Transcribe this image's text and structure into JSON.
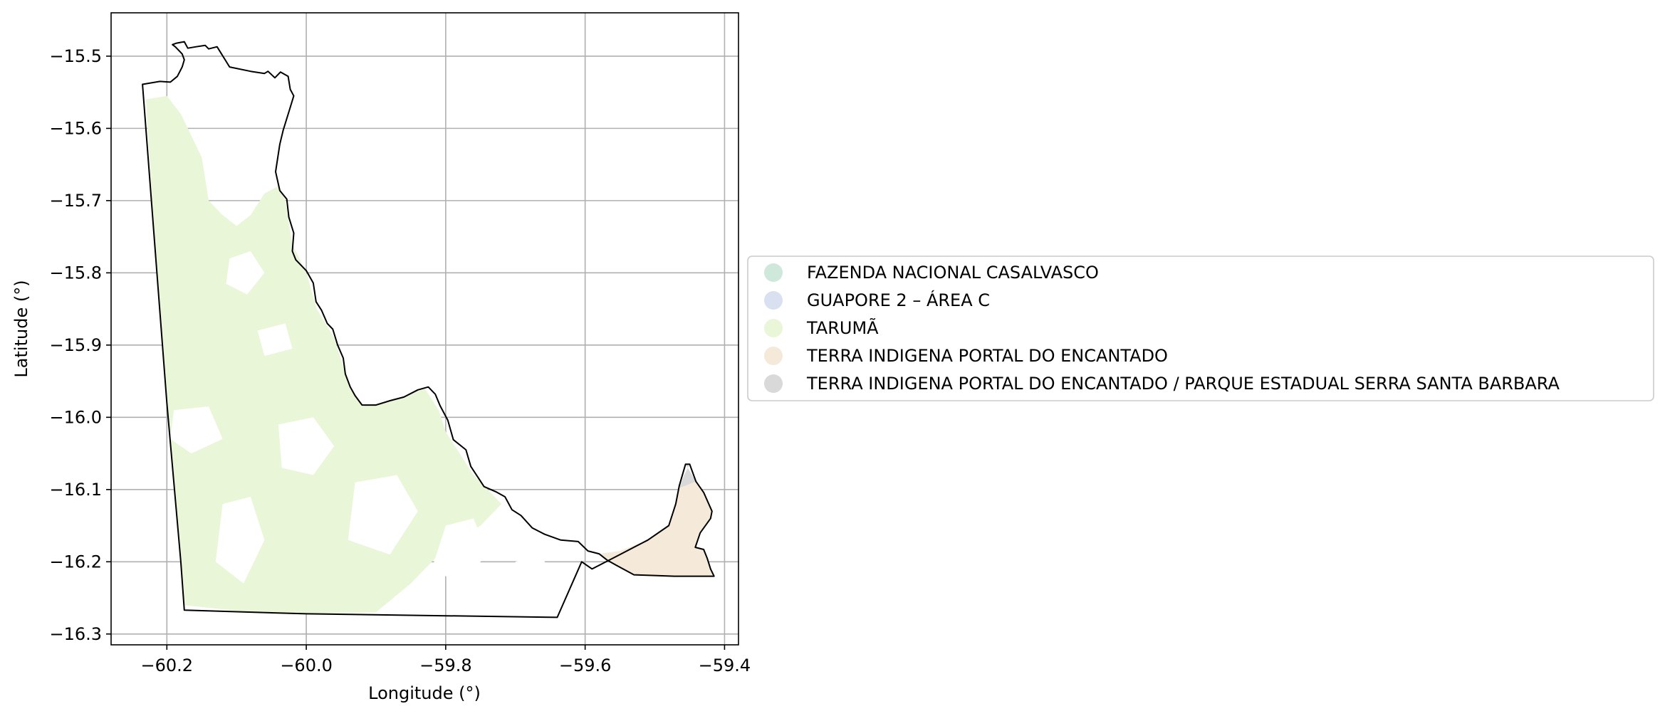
{
  "map": {
    "xlabel": "Longitude (°)",
    "ylabel": "Latitude (°)",
    "xlim": [
      -60.28,
      -59.38
    ],
    "ylim": [
      -16.315,
      -15.44
    ],
    "grid": true,
    "x_ticks": [
      {
        "value": -60.2,
        "label": "−60.2"
      },
      {
        "value": -60.0,
        "label": "−60.0"
      },
      {
        "value": -59.8,
        "label": "−59.8"
      },
      {
        "value": -59.6,
        "label": "−59.6"
      },
      {
        "value": -59.4,
        "label": "−59.4"
      }
    ],
    "y_ticks": [
      {
        "value": -15.5,
        "label": "−15.5"
      },
      {
        "value": -15.6,
        "label": "−15.6"
      },
      {
        "value": -15.7,
        "label": "−15.7"
      },
      {
        "value": -15.8,
        "label": "−15.8"
      },
      {
        "value": -15.9,
        "label": "−15.9"
      },
      {
        "value": -16.0,
        "label": "−16.0"
      },
      {
        "value": -16.1,
        "label": "−16.1"
      },
      {
        "value": -16.2,
        "label": "−16.2"
      },
      {
        "value": -16.3,
        "label": "−16.3"
      }
    ],
    "legend_placement": "center-right outside",
    "legend": [
      {
        "label": "FAZENDA NACIONAL CASALVASCO",
        "color": "#cfe8dc"
      },
      {
        "label": "GUAPORE 2 – ÁREA C",
        "color": "#d9e0ef"
      },
      {
        "label": "TARUMÃ",
        "color": "#e9f6d8"
      },
      {
        "label": "TERRA INDIGENA PORTAL DO ENCANTADO",
        "color": "#f5e9da"
      },
      {
        "label": "TERRA INDIGENA PORTAL DO ENCANTADO / PARQUE ESTADUAL SERRA SANTA BARBARA",
        "color": "#d9d9d9"
      }
    ],
    "boundary_color": "#000000",
    "regions": {
      "boundary": [
        [
          -60.235,
          -15.539
        ],
        [
          -60.21,
          -15.535
        ],
        [
          -60.195,
          -15.536
        ],
        [
          -60.185,
          -15.528
        ],
        [
          -60.178,
          -15.515
        ],
        [
          -60.175,
          -15.505
        ],
        [
          -60.178,
          -15.497
        ],
        [
          -60.188,
          -15.487
        ],
        [
          -60.192,
          -15.484
        ],
        [
          -60.186,
          -15.482
        ],
        [
          -60.175,
          -15.48
        ],
        [
          -60.17,
          -15.489
        ],
        [
          -60.158,
          -15.487
        ],
        [
          -60.145,
          -15.485
        ],
        [
          -60.14,
          -15.49
        ],
        [
          -60.128,
          -15.487
        ],
        [
          -60.11,
          -15.515
        ],
        [
          -60.08,
          -15.521
        ],
        [
          -60.06,
          -15.524
        ],
        [
          -60.055,
          -15.521
        ],
        [
          -60.045,
          -15.53
        ],
        [
          -60.037,
          -15.522
        ],
        [
          -60.026,
          -15.528
        ],
        [
          -60.023,
          -15.546
        ],
        [
          -60.018,
          -15.555
        ],
        [
          -60.024,
          -15.574
        ],
        [
          -60.033,
          -15.602
        ],
        [
          -60.038,
          -15.622
        ],
        [
          -60.044,
          -15.66
        ],
        [
          -60.038,
          -15.686
        ],
        [
          -60.028,
          -15.698
        ],
        [
          -60.025,
          -15.723
        ],
        [
          -60.018,
          -15.745
        ],
        [
          -60.02,
          -15.77
        ],
        [
          -60.015,
          -15.782
        ],
        [
          -60.0,
          -15.797
        ],
        [
          -59.99,
          -15.814
        ],
        [
          -59.986,
          -15.84
        ],
        [
          -59.978,
          -15.852
        ],
        [
          -59.97,
          -15.87
        ],
        [
          -59.962,
          -15.878
        ],
        [
          -59.955,
          -15.9
        ],
        [
          -59.947,
          -15.918
        ],
        [
          -59.944,
          -15.94
        ],
        [
          -59.937,
          -15.958
        ],
        [
          -59.93,
          -15.97
        ],
        [
          -59.92,
          -15.983
        ],
        [
          -59.9,
          -15.983
        ],
        [
          -59.88,
          -15.977
        ],
        [
          -59.86,
          -15.972
        ],
        [
          -59.84,
          -15.962
        ],
        [
          -59.825,
          -15.958
        ],
        [
          -59.815,
          -15.968
        ],
        [
          -59.808,
          -15.984
        ],
        [
          -59.797,
          -16.004
        ],
        [
          -59.789,
          -16.031
        ],
        [
          -59.771,
          -16.045
        ],
        [
          -59.764,
          -16.068
        ],
        [
          -59.745,
          -16.096
        ],
        [
          -59.728,
          -16.103
        ],
        [
          -59.715,
          -16.11
        ],
        [
          -59.705,
          -16.128
        ],
        [
          -59.692,
          -16.136
        ],
        [
          -59.676,
          -16.153
        ],
        [
          -59.658,
          -16.162
        ],
        [
          -59.635,
          -16.17
        ],
        [
          -59.61,
          -16.172
        ],
        [
          -59.596,
          -16.185
        ],
        [
          -59.58,
          -16.189
        ],
        [
          -59.568,
          -16.198
        ],
        [
          -59.555,
          -16.205
        ],
        [
          -59.53,
          -16.218
        ],
        [
          -59.5,
          -16.219
        ],
        [
          -59.472,
          -16.22
        ],
        [
          -59.44,
          -16.22
        ],
        [
          -59.415,
          -16.22
        ],
        [
          -59.42,
          -16.21
        ],
        [
          -59.425,
          -16.195
        ],
        [
          -59.43,
          -16.183
        ],
        [
          -59.442,
          -16.18
        ],
        [
          -59.435,
          -16.16
        ],
        [
          -59.42,
          -16.14
        ],
        [
          -59.418,
          -16.13
        ],
        [
          -59.43,
          -16.104
        ],
        [
          -59.441,
          -16.089
        ],
        [
          -59.45,
          -16.065
        ],
        [
          -59.456,
          -16.065
        ],
        [
          -59.465,
          -16.095
        ],
        [
          -59.47,
          -16.12
        ],
        [
          -59.48,
          -16.15
        ],
        [
          -59.51,
          -16.17
        ],
        [
          -59.55,
          -16.19
        ],
        [
          -59.59,
          -16.21
        ],
        [
          -59.605,
          -16.2
        ],
        [
          -59.64,
          -16.277
        ],
        [
          -60.0,
          -16.272
        ],
        [
          -60.175,
          -16.267
        ],
        [
          -60.18,
          -16.2
        ],
        [
          -60.2,
          -15.98
        ],
        [
          -60.235,
          -15.539
        ]
      ],
      "taruma_patches": [
        [
          [
            -60.23,
            -15.56
          ],
          [
            -60.2,
            -15.555
          ],
          [
            -60.18,
            -15.58
          ],
          [
            -60.15,
            -15.64
          ],
          [
            -60.14,
            -15.7
          ],
          [
            -60.12,
            -15.72
          ],
          [
            -60.1,
            -15.735
          ],
          [
            -60.08,
            -15.72
          ],
          [
            -60.06,
            -15.69
          ],
          [
            -60.04,
            -15.68
          ],
          [
            -60.03,
            -15.7
          ],
          [
            -60.02,
            -15.76
          ],
          [
            -60.0,
            -15.8
          ],
          [
            -59.985,
            -15.85
          ],
          [
            -59.96,
            -15.89
          ],
          [
            -59.94,
            -15.95
          ],
          [
            -59.92,
            -15.985
          ],
          [
            -59.87,
            -15.975
          ],
          [
            -59.83,
            -15.96
          ],
          [
            -59.81,
            -15.99
          ],
          [
            -59.8,
            -16.02
          ],
          [
            -59.78,
            -16.05
          ],
          [
            -59.76,
            -16.08
          ],
          [
            -59.74,
            -16.1
          ],
          [
            -59.72,
            -16.12
          ],
          [
            -59.75,
            -16.15
          ],
          [
            -59.8,
            -16.18
          ],
          [
            -59.85,
            -16.23
          ],
          [
            -59.9,
            -16.27
          ],
          [
            -60.0,
            -16.272
          ],
          [
            -60.1,
            -16.268
          ],
          [
            -60.175,
            -16.26
          ],
          [
            -60.19,
            -16.1
          ],
          [
            -60.2,
            -15.98
          ],
          [
            -60.215,
            -15.8
          ],
          [
            -60.23,
            -15.56
          ]
        ]
      ],
      "taruma_gaps": [
        [
          [
            -60.11,
            -15.78
          ],
          [
            -60.08,
            -15.77
          ],
          [
            -60.06,
            -15.8
          ],
          [
            -60.085,
            -15.83
          ],
          [
            -60.115,
            -15.815
          ]
        ],
        [
          [
            -60.07,
            -15.88
          ],
          [
            -60.03,
            -15.87
          ],
          [
            -60.02,
            -15.905
          ],
          [
            -60.06,
            -15.915
          ]
        ],
        [
          [
            -60.19,
            -15.99
          ],
          [
            -60.14,
            -15.985
          ],
          [
            -60.12,
            -16.03
          ],
          [
            -60.165,
            -16.05
          ],
          [
            -60.195,
            -16.03
          ]
        ],
        [
          [
            -60.04,
            -16.01
          ],
          [
            -59.99,
            -16.0
          ],
          [
            -59.96,
            -16.04
          ],
          [
            -59.99,
            -16.08
          ],
          [
            -60.035,
            -16.07
          ]
        ],
        [
          [
            -59.93,
            -16.09
          ],
          [
            -59.87,
            -16.08
          ],
          [
            -59.84,
            -16.13
          ],
          [
            -59.88,
            -16.19
          ],
          [
            -59.94,
            -16.17
          ]
        ],
        [
          [
            -60.12,
            -16.12
          ],
          [
            -60.08,
            -16.11
          ],
          [
            -60.06,
            -16.17
          ],
          [
            -60.09,
            -16.23
          ],
          [
            -60.13,
            -16.2
          ]
        ],
        [
          [
            -59.8,
            -16.15
          ],
          [
            -59.76,
            -16.14
          ],
          [
            -59.74,
            -16.19
          ],
          [
            -59.78,
            -16.23
          ],
          [
            -59.82,
            -16.21
          ]
        ],
        [
          [
            -59.7,
            -16.2
          ],
          [
            -59.66,
            -16.19
          ],
          [
            -59.65,
            -16.24
          ],
          [
            -59.69,
            -16.26
          ]
        ]
      ],
      "portal_encantado": [
        [
          -59.58,
          -16.189
        ],
        [
          -59.555,
          -16.205
        ],
        [
          -59.53,
          -16.218
        ],
        [
          -59.472,
          -16.22
        ],
        [
          -59.415,
          -16.22
        ],
        [
          -59.42,
          -16.21
        ],
        [
          -59.425,
          -16.195
        ],
        [
          -59.43,
          -16.183
        ],
        [
          -59.442,
          -16.18
        ],
        [
          -59.435,
          -16.16
        ],
        [
          -59.42,
          -16.14
        ],
        [
          -59.418,
          -16.13
        ],
        [
          -59.43,
          -16.104
        ],
        [
          -59.441,
          -16.089
        ],
        [
          -59.465,
          -16.098
        ],
        [
          -59.48,
          -16.15
        ],
        [
          -59.51,
          -16.17
        ],
        [
          -59.55,
          -16.185
        ],
        [
          -59.58,
          -16.189
        ]
      ],
      "portal_serra": [
        [
          -59.45,
          -16.065
        ],
        [
          -59.456,
          -16.065
        ],
        [
          -59.441,
          -16.089
        ],
        [
          -59.465,
          -16.098
        ],
        [
          -59.458,
          -16.08
        ],
        [
          -59.45,
          -16.065
        ]
      ]
    }
  }
}
